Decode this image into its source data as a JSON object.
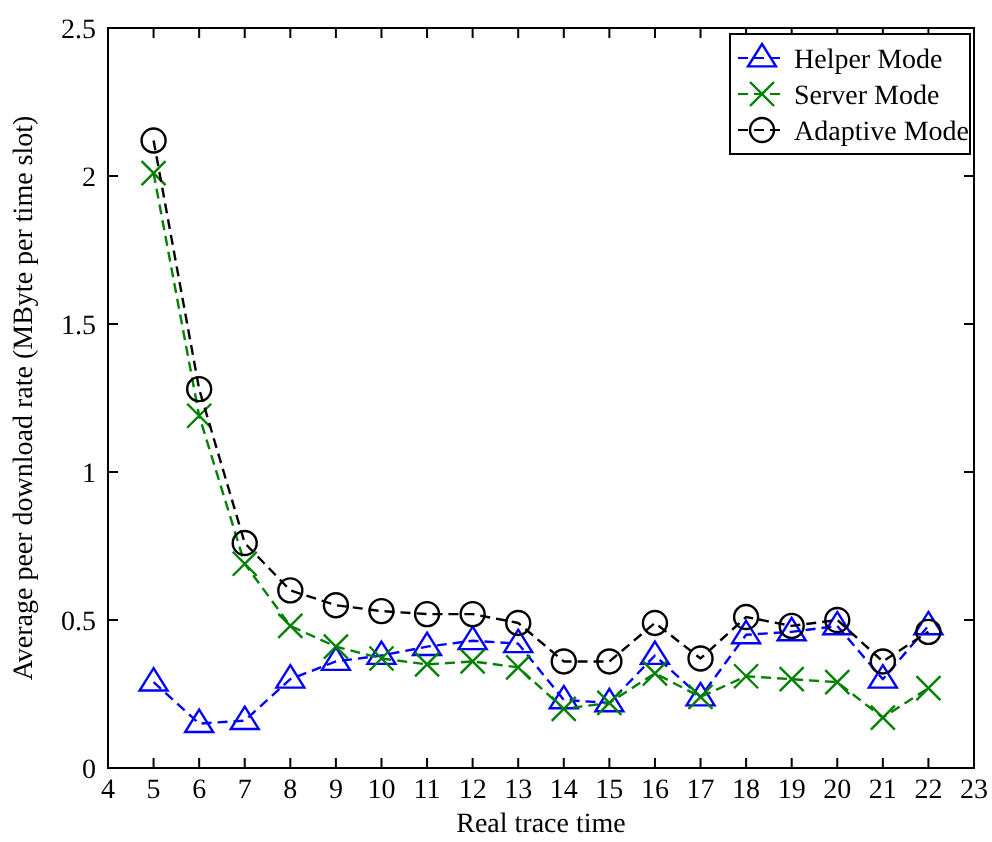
{
  "chart_data": {
    "type": "line",
    "xlabel": "Real trace time",
    "ylabel": "Average peer download rate (MByte per time slot)",
    "x": [
      5,
      6,
      7,
      8,
      9,
      10,
      11,
      12,
      13,
      14,
      15,
      16,
      17,
      18,
      19,
      20,
      21,
      22
    ],
    "xlim": [
      4,
      23
    ],
    "xticks": [
      4,
      5,
      6,
      7,
      8,
      9,
      10,
      11,
      12,
      13,
      14,
      15,
      16,
      17,
      18,
      19,
      20,
      21,
      22,
      23
    ],
    "ylim": [
      0,
      2.5
    ],
    "yticks": [
      0,
      0.5,
      1,
      1.5,
      2,
      2.5
    ],
    "legend": "top right",
    "grid": false,
    "line_style": "dashed",
    "series": [
      {
        "name": "Helper Mode",
        "color": "#0000ff",
        "marker": "triangle",
        "values": [
          0.29,
          0.15,
          0.16,
          0.3,
          0.36,
          0.38,
          0.41,
          0.43,
          0.42,
          0.23,
          0.22,
          0.38,
          0.24,
          0.45,
          0.46,
          0.48,
          0.3,
          0.48
        ]
      },
      {
        "name": "Server Mode",
        "color": "#008000",
        "marker": "cross",
        "values": [
          2.01,
          1.19,
          0.69,
          0.48,
          0.41,
          0.37,
          0.35,
          0.36,
          0.34,
          0.2,
          0.22,
          0.32,
          0.24,
          0.31,
          0.3,
          0.29,
          0.17,
          0.27
        ]
      },
      {
        "name": "Adaptive Mode",
        "color": "#000000",
        "marker": "circle",
        "values": [
          2.12,
          1.28,
          0.76,
          0.6,
          0.55,
          0.53,
          0.52,
          0.52,
          0.49,
          0.36,
          0.36,
          0.49,
          0.37,
          0.51,
          0.48,
          0.5,
          0.36,
          0.46
        ]
      }
    ]
  }
}
